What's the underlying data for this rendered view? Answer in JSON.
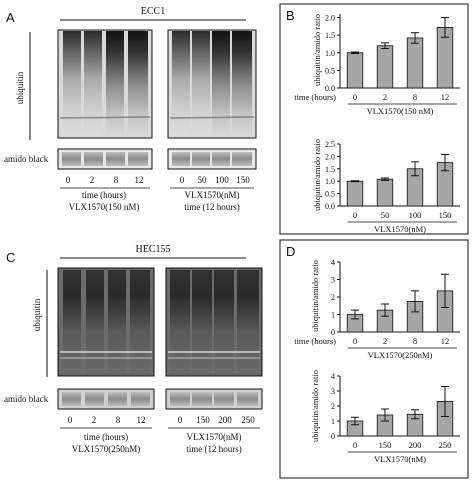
{
  "panels": {
    "A": {
      "letter": "A",
      "cell_line": "ECC1",
      "ylabel": "ubiquitin",
      "amido_label": "amido black",
      "left_blot": {
        "lanes": [
          "0",
          "2",
          "8",
          "12"
        ],
        "caption1": "time (hours)",
        "caption2": "VLX1570(150 nM)"
      },
      "right_blot": {
        "lanes": [
          "0",
          "50",
          "100",
          "150"
        ],
        "caption1": "VLX1570(nM)",
        "caption2": "time (12 hours)"
      }
    },
    "C": {
      "letter": "C",
      "cell_line": "HEC155",
      "ylabel": "ubiquitin",
      "amido_label": "amido black",
      "left_blot": {
        "lanes": [
          "0",
          "2",
          "8",
          "12"
        ],
        "caption1": "time (hours)",
        "caption2": "VLX1570(250nM)"
      },
      "right_blot": {
        "lanes": [
          "0",
          "150",
          "200",
          "250"
        ],
        "caption1": "VLX1570(nM)",
        "caption2": "time (12 hours)"
      }
    },
    "B": {
      "letter": "B"
    },
    "D": {
      "letter": "D"
    }
  },
  "colors": {
    "bar_fill": "#a6a6a6",
    "axis": "#111111"
  },
  "chart_data": [
    {
      "id": "B-top",
      "type": "bar",
      "categories": [
        "0",
        "2",
        "8",
        "12"
      ],
      "values": [
        1.0,
        1.2,
        1.42,
        1.72
      ],
      "errors": [
        0.02,
        0.08,
        0.15,
        0.28
      ],
      "ylabel": "ubiquitin/amido ratio",
      "xlabel_prefix": "time (hours)",
      "treatment": "VLX1570(150 nM)",
      "yticks": [
        "0.0",
        "0.5",
        "1.0",
        "1.5",
        "2.0"
      ],
      "ylim": [
        0,
        2.1
      ]
    },
    {
      "id": "B-bottom",
      "type": "bar",
      "categories": [
        "0",
        "50",
        "100",
        "150"
      ],
      "values": [
        1.0,
        1.08,
        1.5,
        1.75
      ],
      "errors": [
        0.02,
        0.05,
        0.28,
        0.33
      ],
      "ylabel": "ubiquitin/amido ratio",
      "xlabel_prefix": "",
      "treatment": "VLX1570(nM)",
      "yticks": [
        "0.0",
        "0.5",
        "1.0",
        "1.5",
        "2.0",
        "2.5"
      ],
      "ylim": [
        0,
        2.5
      ]
    },
    {
      "id": "D-top",
      "type": "bar",
      "categories": [
        "0",
        "2",
        "8",
        "12"
      ],
      "values": [
        1.0,
        1.25,
        1.75,
        2.35
      ],
      "errors": [
        0.25,
        0.35,
        0.6,
        0.95
      ],
      "ylabel": "ubiquitin/amido ratio",
      "xlabel_prefix": "time (hours)",
      "treatment": "VLX1570(250nM)",
      "yticks": [
        "0",
        "1",
        "2",
        "3",
        "4"
      ],
      "ylim": [
        0,
        4
      ]
    },
    {
      "id": "D-bottom",
      "type": "bar",
      "categories": [
        "0",
        "150",
        "200",
        "250"
      ],
      "values": [
        1.0,
        1.4,
        1.45,
        2.3
      ],
      "errors": [
        0.25,
        0.4,
        0.3,
        1.0
      ],
      "ylabel": "ubiquitin/amido ratio",
      "xlabel_prefix": "",
      "treatment": "VLX1570(nM)",
      "yticks": [
        "0",
        "1",
        "2",
        "3",
        "4"
      ],
      "ylim": [
        0,
        4
      ]
    }
  ]
}
